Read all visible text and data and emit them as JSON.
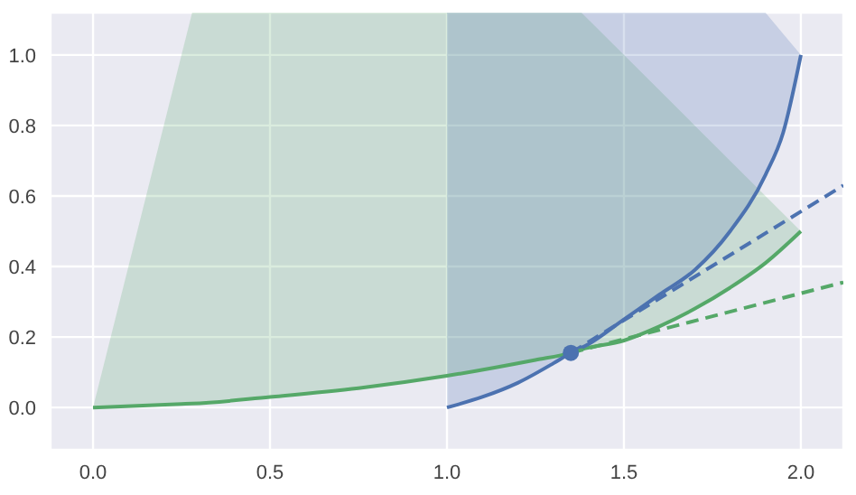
{
  "chart_data": {
    "type": "line",
    "xlim": [
      -0.12,
      2.12
    ],
    "ylim": [
      -0.12,
      1.12
    ],
    "xticks": [
      {
        "value": 0,
        "label": "0.0"
      },
      {
        "value": 0.5,
        "label": "0.5"
      },
      {
        "value": 1,
        "label": "1.0"
      },
      {
        "value": 1.5,
        "label": "1.5"
      },
      {
        "value": 2,
        "label": "2.0"
      }
    ],
    "yticks": [
      {
        "value": 0,
        "label": "0.0"
      },
      {
        "value": 0.2,
        "label": "0.2"
      },
      {
        "value": 0.4,
        "label": "0.4"
      },
      {
        "value": 0.6,
        "label": "0.6"
      },
      {
        "value": 0.8,
        "label": "0.8"
      },
      {
        "value": 1,
        "label": "1.0"
      }
    ],
    "grid": true,
    "series": [
      {
        "color": "#55a868",
        "x": [
          0,
          0.25,
          0.28,
          0.5,
          0.75,
          1,
          1.25,
          1.35,
          1.38,
          1.5,
          1.6,
          1.7,
          1.8,
          1.9,
          2
        ],
        "values": [
          0,
          0.01,
          0.011,
          0.03,
          0.055,
          0.09,
          0.135,
          0.155,
          0.165,
          0.19,
          0.23,
          0.28,
          0.34,
          0.41,
          0.5
        ],
        "lower": [
          0,
          0.01,
          0.011,
          0.03,
          0.055,
          0.09,
          0.135,
          0.155,
          0.165,
          0.19,
          0.23,
          0.28,
          0.34,
          0.41,
          0.5
        ],
        "upper": [
          0,
          1.0,
          1.12,
          1.12,
          1.12,
          1.12,
          1.12,
          1.12,
          1.12,
          1.0,
          0.9,
          0.8,
          0.7,
          0.6,
          0.5
        ]
      },
      {
        "color": "#4c72b0",
        "x": [
          1,
          1.1,
          1.2,
          1.3,
          1.35,
          1.4,
          1.5,
          1.6,
          1.7,
          1.8,
          1.9,
          1.95,
          2
        ],
        "values": [
          0,
          0.03,
          0.07,
          0.125,
          0.155,
          0.18,
          0.25,
          0.32,
          0.39,
          0.5,
          0.66,
          0.78,
          1
        ],
        "lower": [
          0,
          0.03,
          0.07,
          0.125,
          0.155,
          0.18,
          0.25,
          0.32,
          0.39,
          0.5,
          0.66,
          0.78,
          1
        ],
        "upper": [
          1.12,
          1.12,
          1.12,
          1.12,
          1.12,
          1.12,
          1.12,
          1.12,
          1.12,
          1.12,
          1.12,
          1.06,
          1
        ]
      },
      {
        "color": "#4c72b0",
        "line_style": "dashed",
        "x": [
          1.35,
          2.12
        ],
        "values": [
          0.155,
          0.63
        ]
      },
      {
        "color": "#55a868",
        "line_style": "dashed",
        "x": [
          1.35,
          2.12
        ],
        "values": [
          0.155,
          0.355
        ]
      },
      {
        "type": "scatter",
        "color": "#4c72b0",
        "marker": "circle",
        "x": [
          1.35
        ],
        "values": [
          0.155
        ]
      }
    ]
  }
}
